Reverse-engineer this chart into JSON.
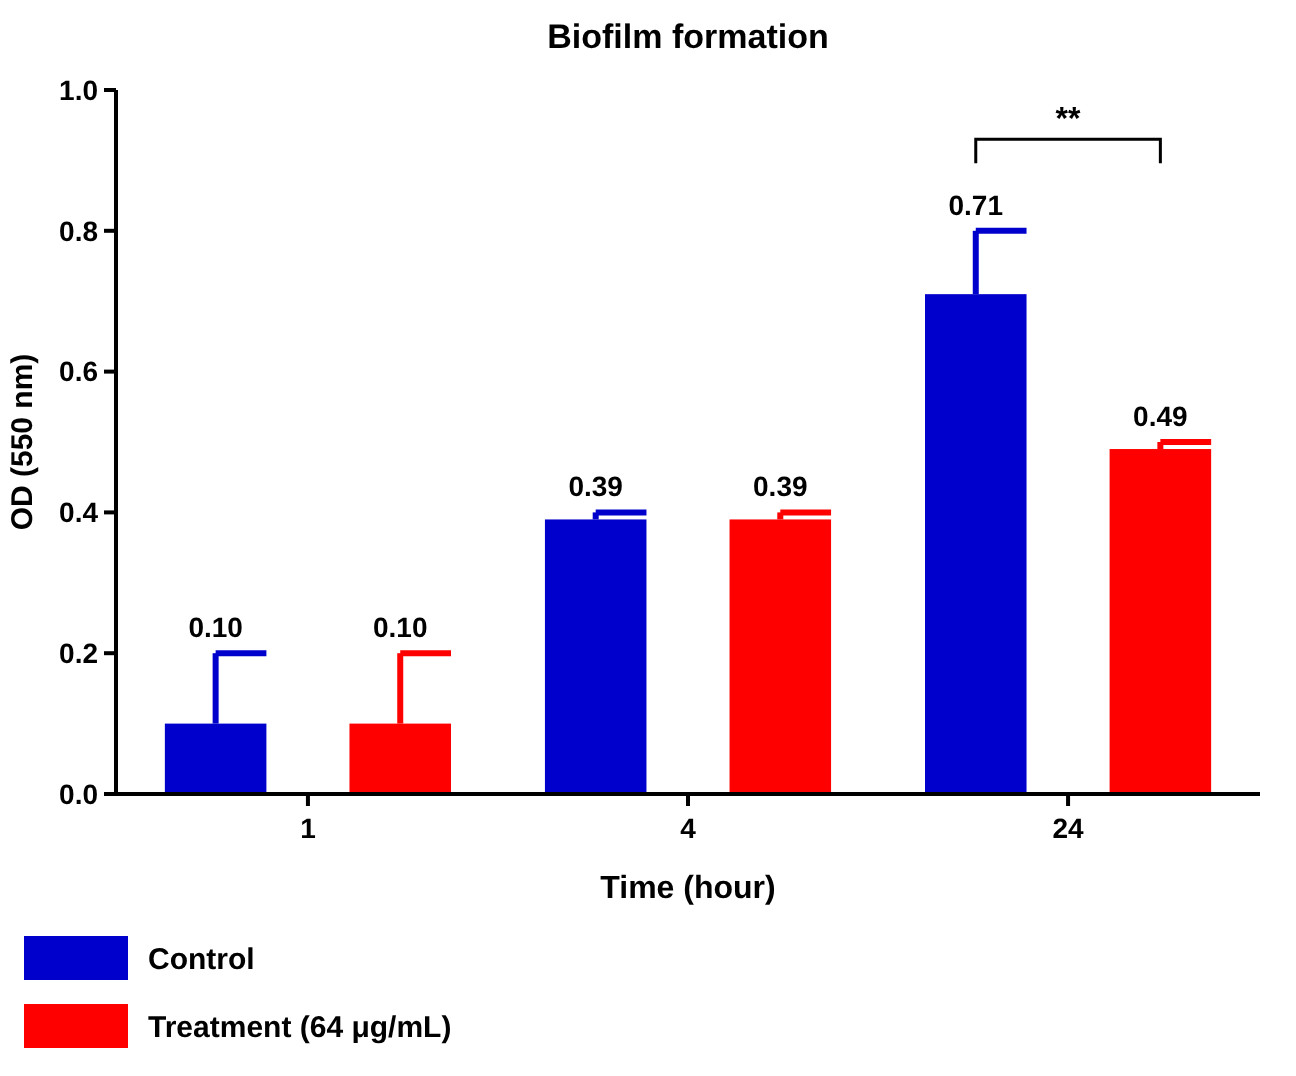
{
  "chart_data": {
    "type": "bar",
    "title": "Biofilm formation",
    "xlabel": "Time (hour)",
    "ylabel": "OD (550 nm)",
    "categories": [
      "1",
      "4",
      "24"
    ],
    "series": [
      {
        "name": "Control",
        "color": "#0000cc",
        "values": [
          0.1,
          0.39,
          0.71
        ],
        "value_labels": [
          "0.10",
          "0.39",
          "0.71"
        ],
        "errors": [
          [
            0.1,
            0.2
          ],
          [
            0.39,
            0.4
          ],
          [
            0.71,
            0.8
          ]
        ]
      },
      {
        "name": "Treatment (64 μg/mL)",
        "color": "#ff0000",
        "values": [
          0.1,
          0.39,
          0.49
        ],
        "value_labels": [
          "0.10",
          "0.39",
          "0.49"
        ],
        "errors": [
          [
            0.1,
            0.2
          ],
          [
            0.39,
            0.4
          ],
          [
            0.49,
            0.5
          ]
        ]
      }
    ],
    "ylim": [
      0,
      1
    ],
    "yticks": [
      {
        "value": 0,
        "label": "0.0"
      },
      {
        "value": 0.2,
        "label": "0.2"
      },
      {
        "value": 0.4,
        "label": "0.4"
      },
      {
        "value": 0.6,
        "label": "0.6"
      },
      {
        "value": 0.8,
        "label": "0.8"
      },
      {
        "value": 1,
        "label": "1.0"
      }
    ],
    "grid": false,
    "legend": "bottom left",
    "annotations": [
      "**"
    ]
  }
}
